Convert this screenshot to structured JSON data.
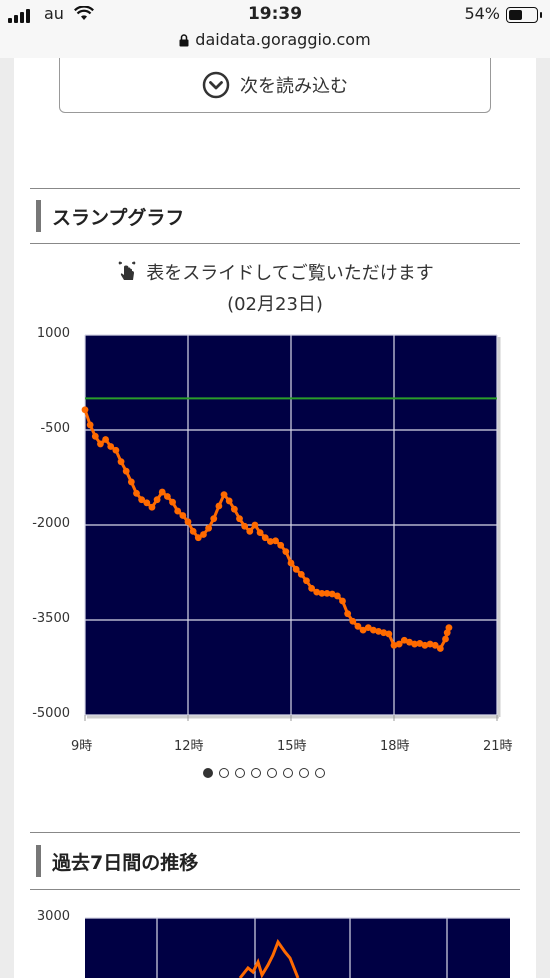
{
  "status_bar": {
    "carrier": "au",
    "time": "19:39",
    "battery_percent": "54%",
    "battery_level": 0.54,
    "url": "daidata.goraggio.com"
  },
  "load_more": {
    "label": "次を読み込む",
    "icon": "chevron-down-circle-icon"
  },
  "slump_section": {
    "title": "スランプグラフ",
    "hint_icon": "swipe-hand-icon",
    "hint": "表をスライドしてご覧いただけます",
    "date": "(02月23日)",
    "page_dots": 8,
    "active_dot": 0
  },
  "chart_data": [
    {
      "type": "line",
      "title": "",
      "xlabel": "",
      "ylabel": "",
      "x_ticks": [
        "9時",
        "12時",
        "15時",
        "18時",
        "21時"
      ],
      "y_ticks": [
        "1000",
        "-500",
        "-2000",
        "-3500",
        "-5000"
      ],
      "xlim": [
        9,
        21
      ],
      "ylim": [
        -5000,
        1000
      ],
      "grid": true,
      "background": "#000044",
      "baseline": {
        "y": 0,
        "color": "#2a9d2a"
      },
      "series": [
        {
          "color": "#ff6a00",
          "x": [
            9.0,
            9.15,
            9.3,
            9.45,
            9.6,
            9.75,
            9.9,
            10.05,
            10.2,
            10.35,
            10.5,
            10.65,
            10.8,
            10.95,
            11.1,
            11.25,
            11.4,
            11.55,
            11.7,
            11.85,
            12.0,
            12.15,
            12.3,
            12.45,
            12.6,
            12.75,
            12.9,
            13.05,
            13.2,
            13.35,
            13.5,
            13.65,
            13.8,
            13.95,
            14.1,
            14.25,
            14.4,
            14.55,
            14.7,
            14.85,
            15.0,
            15.15,
            15.3,
            15.45,
            15.6,
            15.75,
            15.9,
            16.05,
            16.2,
            16.35,
            16.5,
            16.65,
            16.8,
            16.95,
            17.1,
            17.25,
            17.4,
            17.55,
            17.7,
            17.85,
            18.0,
            18.15,
            18.3,
            18.45,
            18.6,
            18.75,
            18.9,
            19.05,
            19.2,
            19.35,
            19.5,
            19.55,
            19.6
          ],
          "y": [
            -180,
            -420,
            -600,
            -720,
            -650,
            -760,
            -820,
            -1000,
            -1150,
            -1320,
            -1500,
            -1600,
            -1650,
            -1720,
            -1600,
            -1480,
            -1550,
            -1640,
            -1780,
            -1850,
            -1950,
            -2100,
            -2200,
            -2150,
            -2050,
            -1900,
            -1700,
            -1520,
            -1620,
            -1750,
            -1900,
            -2020,
            -2100,
            -2000,
            -2120,
            -2200,
            -2260,
            -2250,
            -2320,
            -2420,
            -2600,
            -2700,
            -2780,
            -2880,
            -3000,
            -3060,
            -3080,
            -3080,
            -3090,
            -3120,
            -3200,
            -3400,
            -3520,
            -3600,
            -3660,
            -3620,
            -3660,
            -3680,
            -3700,
            -3720,
            -3900,
            -3880,
            -3820,
            -3850,
            -3880,
            -3870,
            -3900,
            -3880,
            -3900,
            -3950,
            -3800,
            -3700,
            -3620
          ]
        }
      ]
    },
    {
      "type": "line",
      "title": "",
      "y_ticks": [
        "3000"
      ],
      "background": "#000044"
    }
  ],
  "past_section": {
    "title": "過去7日間の推移"
  }
}
